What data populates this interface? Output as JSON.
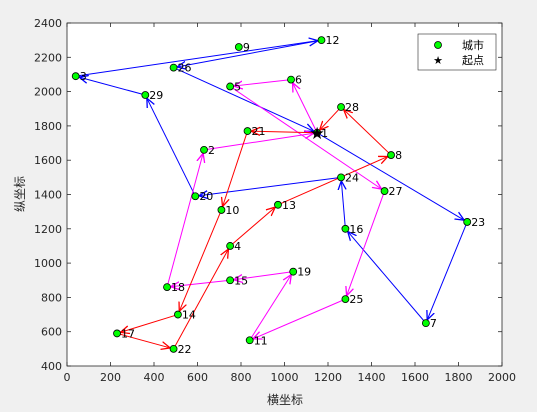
{
  "chart_data": {
    "type": "scatter",
    "xlabel": "横坐标",
    "ylabel": "纵坐标",
    "xlim": [
      0,
      2000
    ],
    "ylim": [
      400,
      2400
    ],
    "xticks": [
      0,
      200,
      400,
      600,
      800,
      1000,
      1200,
      1400,
      1600,
      1800,
      2000
    ],
    "yticks": [
      400,
      600,
      800,
      1000,
      1200,
      1400,
      1600,
      1800,
      2000,
      2200,
      2400
    ],
    "grid": false,
    "legend_position": "top-right",
    "legend": [
      {
        "label": "城市",
        "marker": "green-circle",
        "color": "#00ff00"
      },
      {
        "label": "起点",
        "marker": "black-star",
        "color": "#000000"
      }
    ],
    "start": {
      "x": 1150,
      "y": 1760
    },
    "cities": [
      {
        "id": 1,
        "x": 1150,
        "y": 1760
      },
      {
        "id": 2,
        "x": 630,
        "y": 1660
      },
      {
        "id": 3,
        "x": 40,
        "y": 2090
      },
      {
        "id": 4,
        "x": 750,
        "y": 1100
      },
      {
        "id": 5,
        "x": 750,
        "y": 2030
      },
      {
        "id": 6,
        "x": 1030,
        "y": 2070
      },
      {
        "id": 7,
        "x": 1650,
        "y": 650
      },
      {
        "id": 8,
        "x": 1490,
        "y": 1630
      },
      {
        "id": 9,
        "x": 790,
        "y": 2260
      },
      {
        "id": 10,
        "x": 710,
        "y": 1310
      },
      {
        "id": 11,
        "x": 840,
        "y": 550
      },
      {
        "id": 12,
        "x": 1170,
        "y": 2300
      },
      {
        "id": 13,
        "x": 970,
        "y": 1340
      },
      {
        "id": 14,
        "x": 510,
        "y": 700
      },
      {
        "id": 15,
        "x": 750,
        "y": 900
      },
      {
        "id": 16,
        "x": 1280,
        "y": 1200
      },
      {
        "id": 17,
        "x": 230,
        "y": 590
      },
      {
        "id": 18,
        "x": 460,
        "y": 860
      },
      {
        "id": 19,
        "x": 1040,
        "y": 950
      },
      {
        "id": 20,
        "x": 590,
        "y": 1390
      },
      {
        "id": 21,
        "x": 830,
        "y": 1770
      },
      {
        "id": 22,
        "x": 490,
        "y": 500
      },
      {
        "id": 23,
        "x": 1840,
        "y": 1240
      },
      {
        "id": 24,
        "x": 1260,
        "y": 1500
      },
      {
        "id": 25,
        "x": 1280,
        "y": 790
      },
      {
        "id": 26,
        "x": 490,
        "y": 2140
      },
      {
        "id": 27,
        "x": 1460,
        "y": 1420
      },
      {
        "id": 28,
        "x": 1260,
        "y": 1910
      },
      {
        "id": 29,
        "x": 360,
        "y": 1980
      }
    ],
    "routes": [
      {
        "color": "#0000ff",
        "path": [
          1,
          23,
          7,
          16,
          24,
          20,
          29,
          3,
          12,
          26,
          1
        ]
      },
      {
        "color": "#ff00ff",
        "path": [
          1,
          6,
          5,
          27,
          25,
          11,
          19,
          15,
          18,
          2,
          1
        ]
      },
      {
        "color": "#ff0000",
        "path": [
          1,
          21,
          10,
          14,
          17,
          22,
          4,
          13,
          8,
          28,
          1
        ]
      }
    ],
    "label_offsets_note": ""
  }
}
